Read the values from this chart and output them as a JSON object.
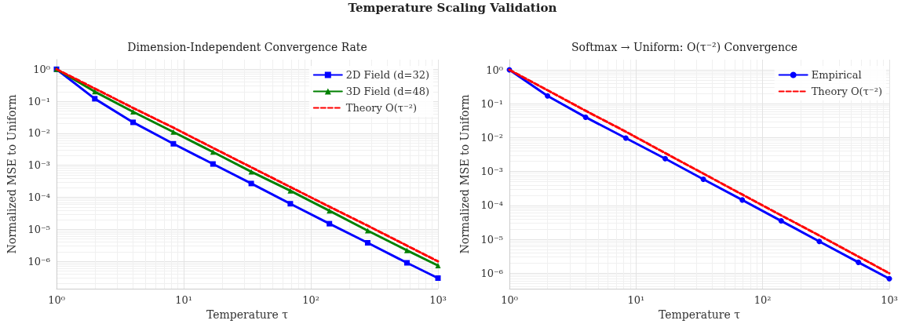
{
  "chart_data": [
    {
      "type": "line",
      "title": "Dimension-Independent Convergence Rate",
      "annotations": [
        "Temperature Scaling Validation"
      ],
      "xlabel": "Temperature τ",
      "ylabel": "Normalized MSE to Uniform",
      "x": [
        1,
        2,
        4,
        8.3,
        17,
        34,
        69,
        140,
        280,
        570,
        1000
      ],
      "series": [
        {
          "name": "2D Field (d=32)",
          "color": "#0000ff",
          "marker": "square",
          "line_style": "solid",
          "values": [
            1,
            0.12,
            0.022,
            0.0047,
            0.0011,
            0.00027,
            6.3e-05,
            1.5e-05,
            3.8e-06,
            9e-07,
            3e-07
          ]
        },
        {
          "name": "3D Field (d=48)",
          "color": "#008000",
          "marker": "triangle",
          "line_style": "solid",
          "values": [
            1,
            0.2,
            0.047,
            0.011,
            0.0026,
            0.00063,
            0.00016,
            3.8e-05,
            9.1e-06,
            2.2e-06,
            7.4e-07
          ]
        },
        {
          "name": "Theory O(τ⁻²)",
          "color": "#ff0000",
          "marker": "none",
          "line_style": "dashed",
          "values": [
            1,
            0.25,
            0.062,
            0.015,
            0.0035,
            0.00087,
            0.00021,
            5.1e-05,
            1.3e-05,
            3.1e-06,
            1e-06
          ]
        }
      ],
      "log": "xy",
      "xlim": [
        1,
        1000
      ],
      "ylim": [
        1.4e-07,
        2
      ],
      "xticks": [
        {
          "value": 1,
          "label": "10⁰"
        },
        {
          "value": 10,
          "label": "10¹"
        },
        {
          "value": 100,
          "label": "10²"
        },
        {
          "value": 1000,
          "label": "10³"
        }
      ],
      "yticks": [
        {
          "value": 1e-06,
          "label": "10⁻⁶"
        },
        {
          "value": 1e-05,
          "label": "10⁻⁵"
        },
        {
          "value": 0.0001,
          "label": "10⁻⁴"
        },
        {
          "value": 0.001,
          "label": "10⁻³"
        },
        {
          "value": 0.01,
          "label": "10⁻²"
        },
        {
          "value": 0.1,
          "label": "10⁻¹"
        },
        {
          "value": 1,
          "label": "10⁰"
        }
      ],
      "grid": true,
      "legend": "top right"
    },
    {
      "type": "line",
      "title": "Softmax → Uniform: O(τ⁻²) Convergence",
      "xlabel": "Temperature τ",
      "ylabel": "Normalized MSE to Uniform",
      "x": [
        1,
        2,
        4,
        8.3,
        17,
        34,
        69,
        140,
        280,
        570,
        1000
      ],
      "series": [
        {
          "name": "Empirical",
          "color": "#0000ff",
          "marker": "circle",
          "line_style": "solid",
          "values": [
            1,
            0.17,
            0.04,
            0.0097,
            0.0024,
            0.00059,
            0.000145,
            3.5e-05,
            8.7e-06,
            2.1e-06,
            6.9e-07
          ]
        },
        {
          "name": "Theory O(τ⁻²)",
          "color": "#ff0000",
          "marker": "none",
          "line_style": "dashed",
          "values": [
            1,
            0.25,
            0.062,
            0.015,
            0.0035,
            0.00087,
            0.00021,
            5.1e-05,
            1.3e-05,
            3.1e-06,
            1e-06
          ]
        }
      ],
      "log": "xy",
      "xlim": [
        1,
        1000
      ],
      "ylim": [
        3.5e-07,
        2
      ],
      "xticks": [
        {
          "value": 1,
          "label": "10⁰"
        },
        {
          "value": 10,
          "label": "10¹"
        },
        {
          "value": 100,
          "label": "10²"
        },
        {
          "value": 1000,
          "label": "10³"
        }
      ],
      "yticks": [
        {
          "value": 1e-06,
          "label": "10⁻⁶"
        },
        {
          "value": 1e-05,
          "label": "10⁻⁵"
        },
        {
          "value": 0.0001,
          "label": "10⁻⁴"
        },
        {
          "value": 0.001,
          "label": "10⁻³"
        },
        {
          "value": 0.01,
          "label": "10⁻²"
        },
        {
          "value": 0.1,
          "label": "10⁻¹"
        },
        {
          "value": 1,
          "label": "10⁰"
        }
      ],
      "grid": true,
      "legend": "top right"
    }
  ]
}
